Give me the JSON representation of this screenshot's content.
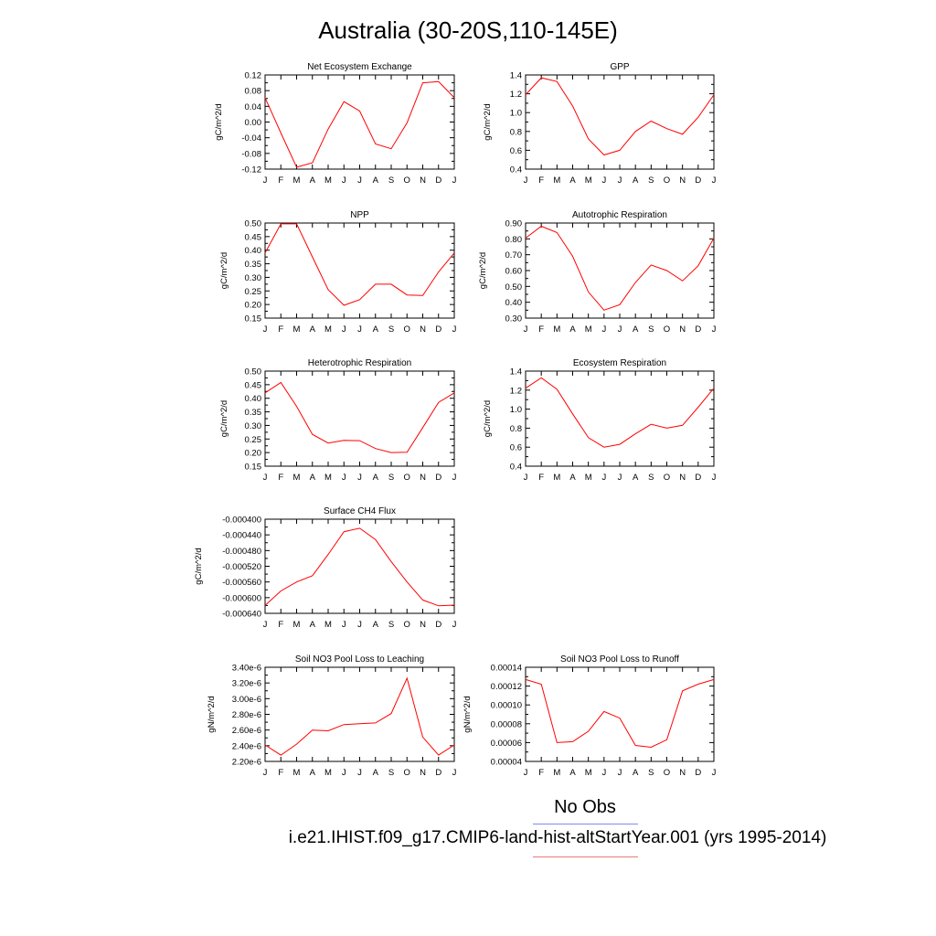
{
  "figure": {
    "title": "Australia (30-20S,110-145E)",
    "legend_header": "No Obs",
    "legend_case": "i.e21.IHIST.f09_g17.CMIP6-land-hist-altStartYear.001 (yrs 1995-2014)",
    "line_color": "#ff0000",
    "obs_line_color": "#8888ee"
  },
  "chart_data": [
    {
      "type": "line",
      "title": "Net Ecosystem Exchange",
      "ylabel": "gC/m^2/d",
      "categories": [
        "J",
        "F",
        "M",
        "A",
        "M",
        "J",
        "J",
        "A",
        "S",
        "O",
        "N",
        "D",
        "J"
      ],
      "yticks": [
        "0.12",
        "0.08",
        "0.04",
        "0.00",
        "-0.04",
        "-0.08",
        "-0.12"
      ],
      "ylim": [
        -0.12,
        0.12
      ],
      "series": [
        {
          "values": [
            0.062,
            -0.028,
            -0.115,
            -0.104,
            -0.018,
            0.052,
            0.028,
            -0.056,
            -0.068,
            -0.002,
            0.1,
            0.103,
            0.062
          ]
        }
      ]
    },
    {
      "type": "line",
      "title": "GPP",
      "ylabel": "gC/m^2/d",
      "categories": [
        "J",
        "F",
        "M",
        "A",
        "M",
        "J",
        "J",
        "A",
        "S",
        "O",
        "N",
        "D",
        "J"
      ],
      "yticks": [
        "1.4",
        "1.2",
        "1.0",
        "0.8",
        "0.6",
        "0.4"
      ],
      "ylim": [
        0.4,
        1.4
      ],
      "series": [
        {
          "values": [
            1.19,
            1.37,
            1.33,
            1.07,
            0.72,
            0.55,
            0.6,
            0.8,
            0.91,
            0.83,
            0.77,
            0.95,
            1.19
          ]
        }
      ]
    },
    {
      "type": "line",
      "title": "NPP",
      "ylabel": "gC/m^2/d",
      "categories": [
        "J",
        "F",
        "M",
        "A",
        "M",
        "J",
        "J",
        "A",
        "S",
        "O",
        "N",
        "D",
        "J"
      ],
      "yticks": [
        "0.50",
        "0.45",
        "0.40",
        "0.35",
        "0.30",
        "0.25",
        "0.20",
        "0.15"
      ],
      "ylim": [
        0.15,
        0.5
      ],
      "series": [
        {
          "values": [
            0.39,
            0.497,
            0.497,
            0.375,
            0.255,
            0.197,
            0.218,
            0.275,
            0.275,
            0.235,
            0.233,
            0.32,
            0.39
          ]
        }
      ]
    },
    {
      "type": "line",
      "title": "Autotrophic Respiration",
      "ylabel": "gC/m^2/d",
      "categories": [
        "J",
        "F",
        "M",
        "A",
        "M",
        "J",
        "J",
        "A",
        "S",
        "O",
        "N",
        "D",
        "J"
      ],
      "yticks": [
        "0.90",
        "0.80",
        "0.70",
        "0.60",
        "0.50",
        "0.40",
        "0.30"
      ],
      "ylim": [
        0.3,
        0.9
      ],
      "series": [
        {
          "values": [
            0.805,
            0.88,
            0.84,
            0.69,
            0.465,
            0.35,
            0.385,
            0.525,
            0.635,
            0.6,
            0.535,
            0.63,
            0.805
          ]
        }
      ]
    },
    {
      "type": "line",
      "title": "Heterotrophic Respiration",
      "ylabel": "gC/m^2/d",
      "categories": [
        "J",
        "F",
        "M",
        "A",
        "M",
        "J",
        "J",
        "A",
        "S",
        "O",
        "N",
        "D",
        "J"
      ],
      "yticks": [
        "0.50",
        "0.45",
        "0.40",
        "0.35",
        "0.30",
        "0.25",
        "0.20",
        "0.15"
      ],
      "ylim": [
        0.15,
        0.5
      ],
      "series": [
        {
          "values": [
            0.42,
            0.458,
            0.37,
            0.267,
            0.235,
            0.245,
            0.244,
            0.215,
            0.2,
            0.201,
            0.292,
            0.385,
            0.42
          ]
        }
      ]
    },
    {
      "type": "line",
      "title": "Ecosystem Respiration",
      "ylabel": "gC/m^2/d",
      "categories": [
        "J",
        "F",
        "M",
        "A",
        "M",
        "J",
        "J",
        "A",
        "S",
        "O",
        "N",
        "D",
        "J"
      ],
      "yticks": [
        "1.4",
        "1.2",
        "1.0",
        "0.8",
        "0.6",
        "0.4"
      ],
      "ylim": [
        0.4,
        1.4
      ],
      "series": [
        {
          "values": [
            1.22,
            1.33,
            1.21,
            0.95,
            0.7,
            0.6,
            0.63,
            0.74,
            0.84,
            0.8,
            0.83,
            1.02,
            1.22
          ]
        }
      ]
    },
    {
      "type": "line",
      "title": "Surface CH4 Flux",
      "ylabel": "gC/m^2/d",
      "categories": [
        "J",
        "F",
        "M",
        "A",
        "M",
        "J",
        "J",
        "A",
        "S",
        "O",
        "N",
        "D",
        "J"
      ],
      "yticks": [
        "-0.000400",
        "-0.000440",
        "-0.000480",
        "-0.000520",
        "-0.000560",
        "-0.000600",
        "-0.000640"
      ],
      "ylim": [
        -0.00064,
        -0.0004
      ],
      "series": [
        {
          "values": [
            -0.00062,
            -0.000583,
            -0.00056,
            -0.000544,
            -0.00049,
            -0.000432,
            -0.000423,
            -0.000452,
            -0.000508,
            -0.00056,
            -0.000606,
            -0.000621,
            -0.000619
          ]
        }
      ]
    },
    {
      "type": "line",
      "title": "Soil NO3 Pool Loss to Leaching",
      "ylabel": "gN/m^2/d",
      "categories": [
        "J",
        "F",
        "M",
        "A",
        "M",
        "J",
        "J",
        "A",
        "S",
        "O",
        "N",
        "D",
        "J"
      ],
      "yticks": [
        "3.40e-6",
        "3.20e-6",
        "3.00e-6",
        "2.80e-6",
        "2.60e-6",
        "2.40e-6",
        "2.20e-6"
      ],
      "ylim": [
        2.2e-06,
        3.4e-06
      ],
      "series": [
        {
          "values": [
            2.41e-06,
            2.28e-06,
            2.42e-06,
            2.6e-06,
            2.59e-06,
            2.67e-06,
            2.68e-06,
            2.69e-06,
            2.81e-06,
            3.26e-06,
            2.51e-06,
            2.28e-06,
            2.41e-06
          ]
        }
      ]
    },
    {
      "type": "line",
      "title": "Soil NO3 Pool Loss to Runoff",
      "ylabel": "gN/m^2/d",
      "categories": [
        "J",
        "F",
        "M",
        "A",
        "M",
        "J",
        "J",
        "A",
        "S",
        "O",
        "N",
        "D",
        "J"
      ],
      "yticks": [
        "0.00014",
        "0.00012",
        "0.00010",
        "0.00008",
        "0.00006",
        "0.00004"
      ],
      "ylim": [
        4e-05,
        0.00014
      ],
      "series": [
        {
          "values": [
            0.000127,
            0.000122,
            6e-05,
            6.1e-05,
            7.2e-05,
            9.3e-05,
            8.6e-05,
            5.7e-05,
            5.5e-05,
            6.3e-05,
            0.000115,
            0.000122,
            0.000127
          ]
        }
      ]
    }
  ]
}
